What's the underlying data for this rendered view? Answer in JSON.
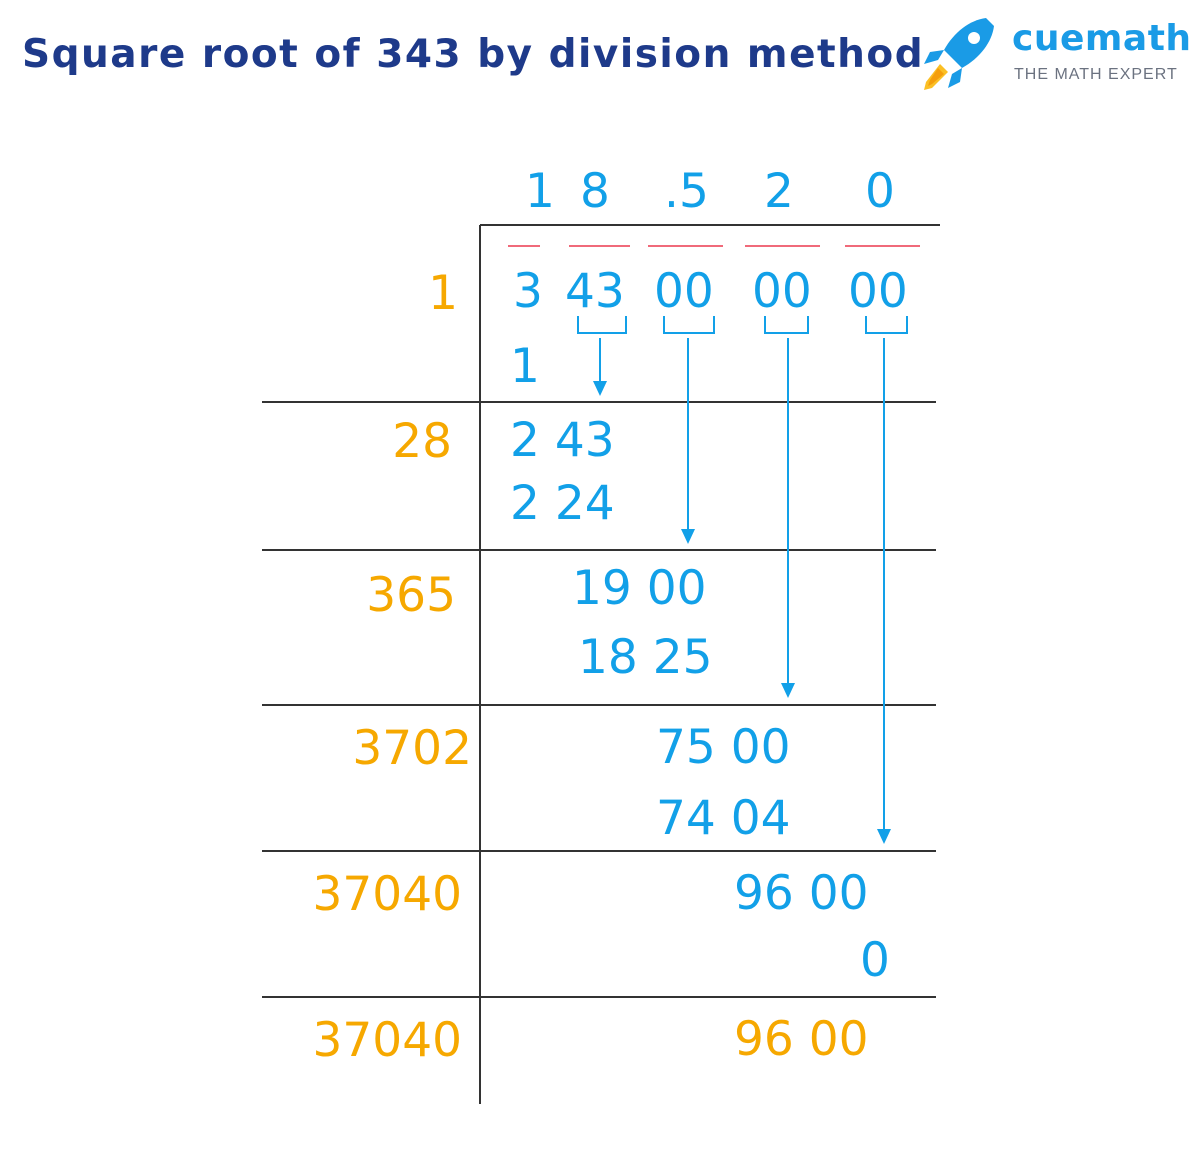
{
  "title": "Square root of 343 by division method",
  "logo": {
    "brand": "cuemath",
    "tagline": "THE MATH EXPERT"
  },
  "colors": {
    "title": "#1e3a8a",
    "quotient_and_work": "#12a0e8",
    "divisors_and_final": "#f6a800",
    "pair_bars": "#f06a7a",
    "logo": "#1a9be6"
  },
  "quotient": [
    "1",
    "8",
    ".5",
    "2",
    "0"
  ],
  "dividend": [
    "3",
    "43",
    "00",
    "00",
    "00"
  ],
  "divisors": [
    "1",
    "28",
    "365",
    "3702",
    "37040",
    "37040"
  ],
  "steps": [
    {
      "subtrahend": "1"
    },
    {
      "partial": "2 43",
      "subtrahend": "2 24"
    },
    {
      "partial": "19 00",
      "subtrahend": "18 25"
    },
    {
      "partial": "75 00",
      "subtrahend": "74 04"
    },
    {
      "partial": "96 00",
      "subtrahend": "0"
    }
  ],
  "final_remainder": "96 00"
}
